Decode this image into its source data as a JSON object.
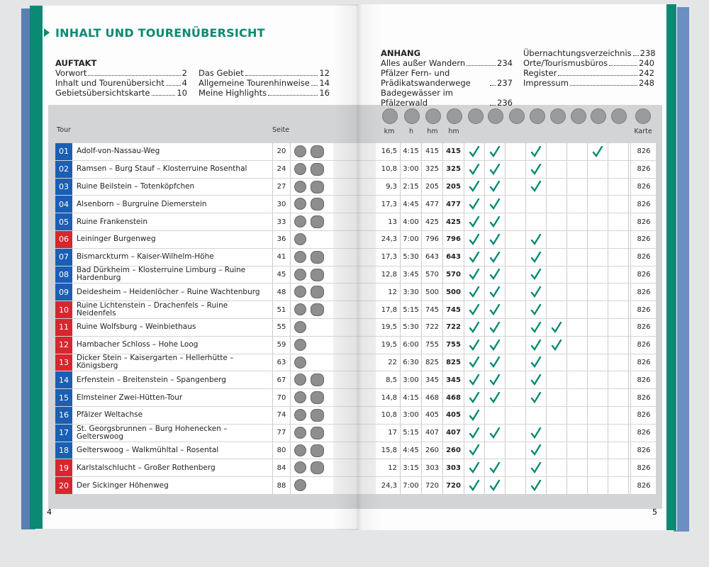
{
  "header": {
    "title": "INHALT UND TOURENÜBERSICHT"
  },
  "toc": {
    "auftakt": {
      "title": "AUFTAKT",
      "columns": [
        [
          {
            "label": "Vorwort",
            "page": "2"
          },
          {
            "label": "Inhalt und Tourenübersicht",
            "page": "4"
          },
          {
            "label": "Gebietsübersichtskarte",
            "page": "10"
          }
        ],
        [
          {
            "label": "Das Gebiet",
            "page": "12"
          },
          {
            "label": "Allgemeine Tourenhinweise",
            "page": "14"
          },
          {
            "label": "Meine Highlights",
            "page": "16"
          }
        ]
      ]
    },
    "anhang": {
      "title": "ANHANG",
      "columns": [
        [
          {
            "label": "Alles außer Wandern",
            "page": "234"
          },
          {
            "label": "Pfälzer Fern- und Prädikatswanderwege",
            "page": "237"
          },
          {
            "label": "Badegewässer im Pfälzerwald",
            "page": "236"
          }
        ],
        [
          {
            "label": "Übernachtungsverzeichnis",
            "page": "238"
          },
          {
            "label": "Orte/Tourismusbüros",
            "page": "240"
          },
          {
            "label": "Register",
            "page": "242"
          },
          {
            "label": "Impressum",
            "page": "248"
          }
        ]
      ]
    }
  },
  "table": {
    "headers": {
      "tour": "Tour",
      "seite": "Seite",
      "km": "km",
      "h": "h",
      "hm_up": "hm",
      "hm_down": "hm",
      "karte": "Karte"
    },
    "rows": [
      {
        "num": "01",
        "color": "#1a5fb4",
        "name": "Adolf-von-Nassau-Weg",
        "page": "20",
        "family": true,
        "km": "16,5",
        "h": "4:15",
        "hm_up": "415",
        "hm_down": "415",
        "checks": [
          true,
          true,
          false,
          true,
          false,
          false,
          true,
          false
        ],
        "karte": "826"
      },
      {
        "num": "02",
        "color": "#1a5fb4",
        "name": "Ramsen – Burg Stauf – Klosterruine Rosenthal",
        "page": "24",
        "family": true,
        "km": "10,8",
        "h": "3:00",
        "hm_up": "325",
        "hm_down": "325",
        "checks": [
          true,
          true,
          false,
          true,
          false,
          false,
          false,
          false
        ],
        "karte": "826"
      },
      {
        "num": "03",
        "color": "#1a5fb4",
        "name": "Ruine Beilstein – Totenköpfchen",
        "page": "27",
        "family": true,
        "km": "9,3",
        "h": "2:15",
        "hm_up": "205",
        "hm_down": "205",
        "checks": [
          true,
          true,
          false,
          true,
          false,
          false,
          false,
          false
        ],
        "karte": "826"
      },
      {
        "num": "04",
        "color": "#1a5fb4",
        "name": "Alsenborn – Burgruine Diemerstein",
        "page": "30",
        "family": true,
        "km": "17,3",
        "h": "4:45",
        "hm_up": "477",
        "hm_down": "477",
        "checks": [
          true,
          true,
          false,
          false,
          false,
          false,
          false,
          false
        ],
        "karte": "826"
      },
      {
        "num": "05",
        "color": "#1a5fb4",
        "name": "Ruine Frankenstein",
        "page": "33",
        "family": true,
        "km": "13",
        "h": "4:00",
        "hm_up": "425",
        "hm_down": "425",
        "checks": [
          true,
          true,
          false,
          false,
          false,
          false,
          false,
          false
        ],
        "karte": "826"
      },
      {
        "num": "06",
        "color": "#d7262e",
        "name": "Leininger Burgenweg",
        "page": "36",
        "family": false,
        "km": "24,3",
        "h": "7:00",
        "hm_up": "796",
        "hm_down": "796",
        "checks": [
          true,
          true,
          false,
          true,
          false,
          false,
          false,
          false
        ],
        "karte": "826"
      },
      {
        "num": "07",
        "color": "#1a5fb4",
        "name": "Bismarckturm – Kaiser-Wilhelm-Höhe",
        "page": "41",
        "family": true,
        "km": "17,3",
        "h": "5:30",
        "hm_up": "643",
        "hm_down": "643",
        "checks": [
          true,
          true,
          false,
          true,
          false,
          false,
          false,
          false
        ],
        "karte": "826"
      },
      {
        "num": "08",
        "color": "#1a5fb4",
        "name": "Bad Dürkheim – Klosterruine Limburg – Ruine Hardenburg",
        "page": "45",
        "family": true,
        "km": "12,8",
        "h": "3:45",
        "hm_up": "570",
        "hm_down": "570",
        "checks": [
          true,
          true,
          false,
          true,
          false,
          false,
          false,
          false
        ],
        "karte": "826"
      },
      {
        "num": "09",
        "color": "#1a5fb4",
        "name": "Deidesheim – Heidenlöcher – Ruine Wachtenburg",
        "page": "48",
        "family": true,
        "km": "12",
        "h": "3:30",
        "hm_up": "500",
        "hm_down": "500",
        "checks": [
          true,
          true,
          false,
          true,
          false,
          false,
          false,
          false
        ],
        "karte": "826"
      },
      {
        "num": "10",
        "color": "#d7262e",
        "name": "Ruine Lichtenstein – Drachenfels – Ruine Neidenfels",
        "page": "51",
        "family": true,
        "km": "17,8",
        "h": "5:15",
        "hm_up": "745",
        "hm_down": "745",
        "checks": [
          true,
          true,
          false,
          true,
          false,
          false,
          false,
          false
        ],
        "karte": "826"
      },
      {
        "num": "11",
        "color": "#d7262e",
        "name": "Ruine Wolfsburg – Weinbiethaus",
        "page": "55",
        "family": false,
        "km": "19,5",
        "h": "5:30",
        "hm_up": "722",
        "hm_down": "722",
        "checks": [
          true,
          true,
          false,
          true,
          true,
          false,
          false,
          false
        ],
        "karte": "826"
      },
      {
        "num": "12",
        "color": "#d7262e",
        "name": "Hambacher Schloss – Hohe Loog",
        "page": "59",
        "family": false,
        "km": "19,5",
        "h": "6:00",
        "hm_up": "755",
        "hm_down": "755",
        "checks": [
          true,
          true,
          false,
          true,
          true,
          false,
          false,
          false
        ],
        "karte": "826"
      },
      {
        "num": "13",
        "color": "#d7262e",
        "name": "Dicker Stein – Kaisergarten – Hellerhütte – Königsberg",
        "page": "63",
        "family": false,
        "km": "22",
        "h": "6:30",
        "hm_up": "825",
        "hm_down": "825",
        "checks": [
          true,
          true,
          false,
          true,
          false,
          false,
          false,
          false
        ],
        "karte": "826"
      },
      {
        "num": "14",
        "color": "#1a5fb4",
        "name": "Erfenstein – Breitenstein – Spangenberg",
        "page": "67",
        "family": true,
        "km": "8,5",
        "h": "3:00",
        "hm_up": "345",
        "hm_down": "345",
        "checks": [
          true,
          true,
          false,
          true,
          false,
          false,
          false,
          false
        ],
        "karte": "826"
      },
      {
        "num": "15",
        "color": "#1a5fb4",
        "name": "Elmsteiner Zwei-Hütten-Tour",
        "page": "70",
        "family": true,
        "km": "14,8",
        "h": "4:15",
        "hm_up": "468",
        "hm_down": "468",
        "checks": [
          true,
          true,
          false,
          true,
          false,
          false,
          false,
          false
        ],
        "karte": "826"
      },
      {
        "num": "16",
        "color": "#1a5fb4",
        "name": "Pfälzer Weltachse",
        "page": "74",
        "family": true,
        "km": "10,8",
        "h": "3:00",
        "hm_up": "405",
        "hm_down": "405",
        "checks": [
          true,
          false,
          false,
          false,
          false,
          false,
          false,
          false
        ],
        "karte": "826"
      },
      {
        "num": "17",
        "color": "#1a5fb4",
        "name": "St. Georgsbrunnen – Burg Hohenecken – Gelterswoog",
        "page": "77",
        "family": true,
        "km": "17",
        "h": "5:15",
        "hm_up": "407",
        "hm_down": "407",
        "checks": [
          true,
          true,
          false,
          true,
          false,
          false,
          false,
          false
        ],
        "karte": "826"
      },
      {
        "num": "18",
        "color": "#1a5fb4",
        "name": "Gelterswoog – Walkmühltal – Rosental",
        "page": "80",
        "family": true,
        "km": "15,8",
        "h": "4:45",
        "hm_up": "260",
        "hm_down": "260",
        "checks": [
          true,
          false,
          false,
          true,
          false,
          false,
          false,
          false
        ],
        "karte": "826"
      },
      {
        "num": "19",
        "color": "#d7262e",
        "name": "Karlstalschlucht – Großer Rothenberg",
        "page": "84",
        "family": true,
        "km": "12",
        "h": "3:15",
        "hm_up": "303",
        "hm_down": "303",
        "checks": [
          true,
          true,
          false,
          true,
          false,
          false,
          false,
          false
        ],
        "karte": "826"
      },
      {
        "num": "20",
        "color": "#d7262e",
        "name": "Der Sickinger Höhenweg",
        "page": "88",
        "family": false,
        "km": "24,3",
        "h": "7:00",
        "hm_up": "720",
        "hm_down": "720",
        "checks": [
          true,
          true,
          false,
          true,
          false,
          false,
          false,
          false
        ],
        "karte": "826"
      }
    ]
  },
  "footer": {
    "left": "4",
    "right": "5"
  }
}
